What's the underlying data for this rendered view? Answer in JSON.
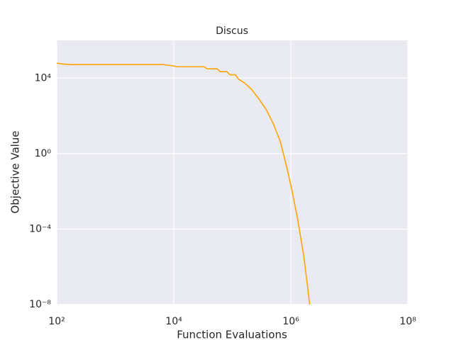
{
  "chart_data": {
    "type": "line",
    "title": "Discus",
    "x_label": "Function Evaluations",
    "y_label": "Objective Value",
    "x_log": true,
    "y_log": true,
    "grid": true,
    "xlim": [
      100,
      100000000
    ],
    "ylim": [
      1e-08,
      1000000
    ],
    "xticks": [
      {
        "value": 100,
        "label": "10²"
      },
      {
        "value": 10000,
        "label": "10⁴"
      },
      {
        "value": 1000000,
        "label": "10⁶"
      },
      {
        "value": 100000000,
        "label": "10⁸"
      }
    ],
    "yticks": [
      {
        "value": 1e-08,
        "label": "10⁻⁸"
      },
      {
        "value": 0.0001,
        "label": "10⁻⁴"
      },
      {
        "value": 1,
        "label": "10⁰"
      },
      {
        "value": 10000,
        "label": "10⁴"
      }
    ],
    "series": [
      {
        "color": "#ffa500",
        "x": [
          100,
          125,
          175,
          6580,
          10000,
          11500,
          33000,
          37000,
          55000,
          62000,
          81000,
          91000,
          113000,
          126000,
          162000,
          214000,
          282000,
          377000,
          500000,
          660000,
          872000,
          1050000,
          1310000,
          1650000,
          1900000,
          2100000
        ],
        "values": [
          62000,
          56000,
          52000,
          52000,
          44000,
          40000,
          40000,
          31000,
          31000,
          22000,
          22000,
          15000,
          15000,
          9200,
          5500,
          2500,
          820,
          220,
          39,
          4.5,
          0.14,
          0.0104,
          0.00033,
          4.4e-06,
          1.4e-07,
          1e-08
        ]
      }
    ]
  }
}
